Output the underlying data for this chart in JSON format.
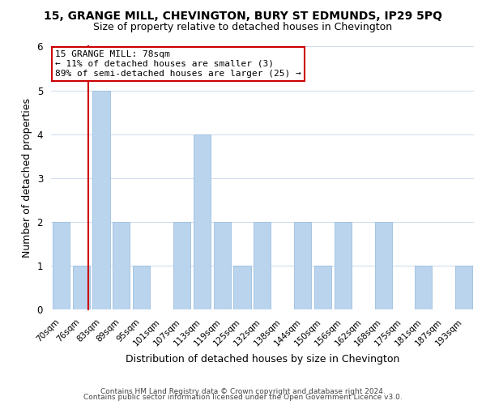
{
  "title": "15, GRANGE MILL, CHEVINGTON, BURY ST EDMUNDS, IP29 5PQ",
  "subtitle": "Size of property relative to detached houses in Chevington",
  "xlabel": "Distribution of detached houses by size in Chevington",
  "ylabel": "Number of detached properties",
  "bin_labels": [
    "70sqm",
    "76sqm",
    "83sqm",
    "89sqm",
    "95sqm",
    "101sqm",
    "107sqm",
    "113sqm",
    "119sqm",
    "125sqm",
    "132sqm",
    "138sqm",
    "144sqm",
    "150sqm",
    "156sqm",
    "162sqm",
    "168sqm",
    "175sqm",
    "181sqm",
    "187sqm",
    "193sqm"
  ],
  "counts": [
    2,
    1,
    5,
    2,
    1,
    0,
    2,
    4,
    2,
    1,
    2,
    0,
    2,
    1,
    2,
    0,
    2,
    0,
    1,
    0,
    1
  ],
  "bar_color": "#bad4ed",
  "bar_edge_color": "#9cbfdf",
  "grid_color": "#d0dff0",
  "background_color": "#ffffff",
  "annotation_box_edge": "#cc0000",
  "annotation_line_color": "#cc0000",
  "annotation_text_line1": "15 GRANGE MILL: 78sqm",
  "annotation_text_line2": "← 11% of detached houses are smaller (3)",
  "annotation_text_line3": "89% of semi-detached houses are larger (25) →",
  "footer_line1": "Contains HM Land Registry data © Crown copyright and database right 2024.",
  "footer_line2": "Contains public sector information licensed under the Open Government Licence v3.0.",
  "ylim": [
    0,
    6
  ],
  "yticks": [
    0,
    1,
    2,
    3,
    4,
    5,
    6
  ],
  "prop_bar_index": 1,
  "n_bins": 21
}
